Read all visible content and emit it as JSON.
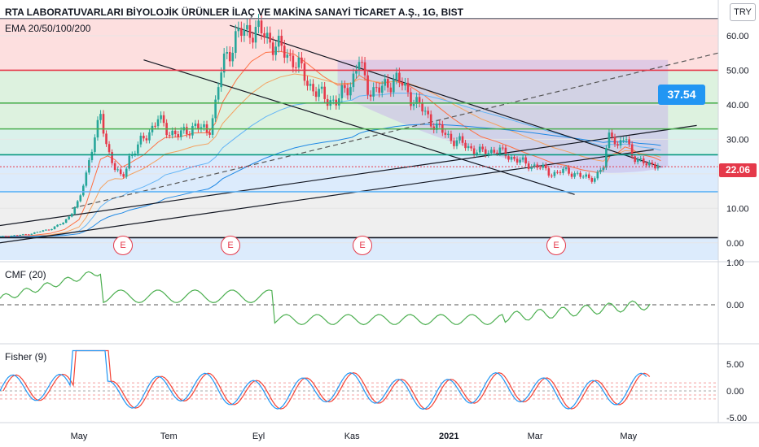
{
  "header": {
    "title": "RTA LABORATUVARLARI BİYOLOJİK ÜRÜNLER İLAÇ VE MAKİNA SANAYİ TİCARET A.Ş., 1G, BIST",
    "ema_label": "EMA 20/50/100/200",
    "currency": "TRY"
  },
  "price_axis": {
    "ticks": [
      "60.00",
      "50.00",
      "40.00",
      "30.00",
      "20.00",
      "10.00",
      "0.00"
    ],
    "range": [
      -5,
      68
    ]
  },
  "last_price": "22.06",
  "callout": "37.54",
  "earnings_marker": "E",
  "cmf": {
    "label": "CMF (20)",
    "ticks": [
      "1.00",
      "0.00"
    ]
  },
  "fisher": {
    "label": "Fisher (9)",
    "ticks": [
      "5.00",
      "0.00",
      "-5.00"
    ]
  },
  "time_axis": [
    "May",
    "Tem",
    "Eyl",
    "Kas",
    "2021",
    "Mar",
    "May"
  ],
  "colors": {
    "up": "#26a69a",
    "down": "#e5394a",
    "bg": "#ffffff",
    "cmf_line": "#4caf50",
    "fisher_blue": "#2196f3",
    "fisher_red": "#f44336",
    "band_red": "#fdd9d9",
    "band_green": "#d7f0d9",
    "band_blue": "#d6e8fb",
    "band_gray": "#ececec"
  },
  "chart_data": {
    "type": "candlestick",
    "title": "RTA LABORATUVARLARI BİYOLOJİK ÜRÜNLER İLAÇ VE MAKİNA SANAYİ TİCARET A.Ş., 1G, BIST",
    "x": [
      "May",
      "Tem",
      "Eyl",
      "Kas",
      "2021",
      "Mar",
      "May"
    ],
    "ylim": [
      0,
      65
    ],
    "close_path": [
      [
        0.0,
        1.8
      ],
      [
        0.04,
        2.5
      ],
      [
        0.07,
        4
      ],
      [
        0.09,
        6
      ],
      [
        0.11,
        12
      ],
      [
        0.12,
        20
      ],
      [
        0.13,
        30
      ],
      [
        0.14,
        36
      ],
      [
        0.15,
        27
      ],
      [
        0.16,
        22
      ],
      [
        0.17,
        18
      ],
      [
        0.18,
        25
      ],
      [
        0.2,
        30
      ],
      [
        0.22,
        36
      ],
      [
        0.23,
        33
      ],
      [
        0.25,
        31
      ],
      [
        0.27,
        34
      ],
      [
        0.29,
        32
      ],
      [
        0.3,
        40
      ],
      [
        0.31,
        52
      ],
      [
        0.33,
        60
      ],
      [
        0.35,
        62
      ],
      [
        0.37,
        60
      ],
      [
        0.39,
        56
      ],
      [
        0.41,
        53
      ],
      [
        0.43,
        46
      ],
      [
        0.45,
        42
      ],
      [
        0.47,
        41
      ],
      [
        0.49,
        47
      ],
      [
        0.5,
        53
      ],
      [
        0.51,
        45
      ],
      [
        0.53,
        44
      ],
      [
        0.55,
        48
      ],
      [
        0.57,
        43
      ],
      [
        0.59,
        38
      ],
      [
        0.61,
        33
      ],
      [
        0.63,
        30
      ],
      [
        0.65,
        28
      ],
      [
        0.67,
        26
      ],
      [
        0.69,
        27
      ],
      [
        0.71,
        25
      ],
      [
        0.73,
        23
      ],
      [
        0.75,
        22
      ],
      [
        0.77,
        20
      ],
      [
        0.79,
        21
      ],
      [
        0.81,
        19
      ],
      [
        0.83,
        19
      ],
      [
        0.84,
        22
      ],
      [
        0.85,
        34
      ],
      [
        0.86,
        27
      ],
      [
        0.87,
        31
      ],
      [
        0.88,
        26
      ],
      [
        0.89,
        23
      ],
      [
        0.91,
        23
      ],
      [
        0.92,
        22.06
      ]
    ],
    "horizontal_levels": [
      65,
      50,
      40.5,
      33,
      25.5,
      22.06,
      14.8,
      1.5
    ],
    "annotation": 37.54,
    "last": 22.06
  }
}
